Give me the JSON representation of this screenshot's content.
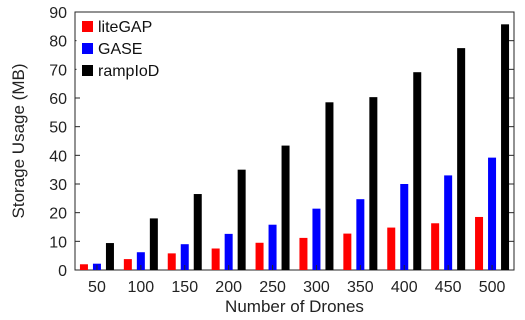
{
  "chart_data": {
    "type": "bar",
    "xlabel": "Number of Drones",
    "ylabel": "Storage Usage (MB)",
    "categories": [
      "50",
      "100",
      "150",
      "200",
      "250",
      "300",
      "350",
      "400",
      "450",
      "500"
    ],
    "ylim": [
      0,
      90
    ],
    "yticks": [
      "0",
      "10",
      "20",
      "30",
      "40",
      "50",
      "60",
      "70",
      "80",
      "90"
    ],
    "grid": false,
    "legend_position": "top-left",
    "series": [
      {
        "name": "liteGAP",
        "color": "#ff0000",
        "values": [
          2.0,
          3.8,
          5.8,
          7.5,
          9.5,
          11.2,
          12.7,
          14.8,
          16.3,
          18.5
        ]
      },
      {
        "name": "GASE",
        "color": "#0000ff",
        "values": [
          2.2,
          6.2,
          9.0,
          12.6,
          15.8,
          21.4,
          24.7,
          30.0,
          33.0,
          39.2
        ]
      },
      {
        "name": "rampIoD",
        "color": "#000000",
        "values": [
          9.4,
          18.0,
          26.5,
          35.0,
          43.4,
          58.5,
          60.3,
          69.0,
          77.4,
          85.7
        ]
      }
    ]
  }
}
